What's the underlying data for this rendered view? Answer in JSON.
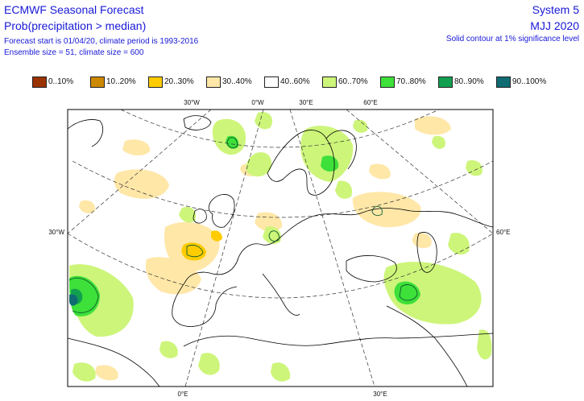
{
  "header": {
    "title": "ECMWF Seasonal Forecast",
    "subtitle": "Prob(precipitation > median)",
    "info_line1": "Forecast start is 01/04/20, climate period is 1993-2016",
    "info_line2": "Ensemble size = 51, climate size = 600",
    "system": "System 5",
    "period": "MJJ 2020",
    "contour_note": "Solid contour at 1% significance level"
  },
  "legend": {
    "items": [
      {
        "label": "0..10%",
        "color": "#993300"
      },
      {
        "label": "10..20%",
        "color": "#cc8800"
      },
      {
        "label": "20..30%",
        "color": "#ffcc00"
      },
      {
        "label": "30..40%",
        "color": "#ffe7a8"
      },
      {
        "label": "40..60%",
        "color": "#ffffff"
      },
      {
        "label": "60..70%",
        "color": "#cdf57a"
      },
      {
        "label": "70..80%",
        "color": "#3ee03a"
      },
      {
        "label": "80..90%",
        "color": "#12a050"
      },
      {
        "label": "90..100%",
        "color": "#0f6c73"
      }
    ]
  },
  "map": {
    "top_labels": [
      "30°W",
      "0°W",
      "30°E",
      "60°E"
    ],
    "left_label": "30°W",
    "right_label": "60°E",
    "bottom_labels": [
      "0°E",
      "30°E"
    ]
  }
}
